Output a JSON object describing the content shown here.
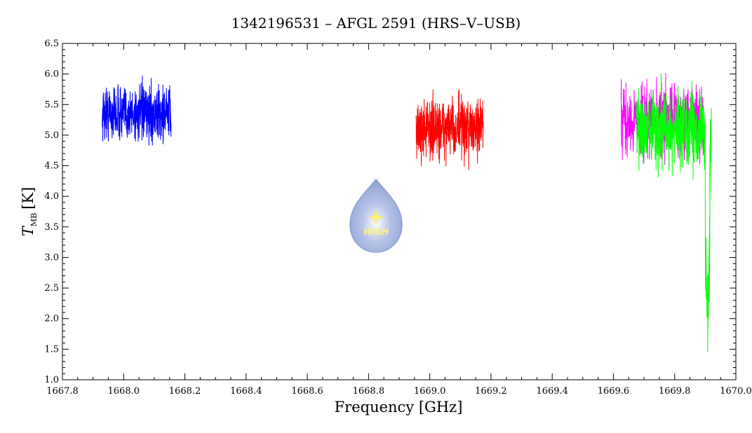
{
  "chart_data": {
    "type": "line",
    "title": "1342196531 – AFGL 2591 (HRS–V–USB)",
    "xlabel": "Frequency [GHz]",
    "ylabel": {
      "main": "T",
      "subscript": "MB",
      "unit": "[K]"
    },
    "xlim": [
      1667.8,
      1670.0
    ],
    "ylim": [
      1.0,
      6.5
    ],
    "x_ticks": [
      "1667.8",
      "1668.0",
      "1668.2",
      "1668.4",
      "1668.6",
      "1668.8",
      "1669.0",
      "1669.2",
      "1669.4",
      "1669.6",
      "1669.8",
      "1670.0"
    ],
    "y_ticks": [
      "1.0",
      "1.5",
      "2.0",
      "2.5",
      "3.0",
      "3.5",
      "4.0",
      "4.5",
      "5.0",
      "5.5",
      "6.0",
      "6.5"
    ],
    "grid": false,
    "logo_text": "WISH",
    "series": [
      {
        "color": "#0000ff",
        "x_start": 1667.93,
        "x_end": 1668.155,
        "mean": 5.35,
        "noise": 0.22,
        "min": 4.5,
        "max": 6.07
      },
      {
        "color": "#ff0000",
        "x_start": 1668.955,
        "x_end": 1669.175,
        "mean": 5.1,
        "noise": 0.25,
        "min": 4.42,
        "max": 6.0
      },
      {
        "color": "#ff00ff",
        "x_start": 1669.625,
        "x_end": 1669.895,
        "mean": 5.25,
        "noise": 0.3,
        "min": 4.27,
        "max": 6.4
      },
      {
        "color": "#00ff00",
        "x_start": 1669.675,
        "x_end": 1669.92,
        "mean": 5.1,
        "noise": 0.3,
        "min": 1.45,
        "max": 6.38,
        "dip_start": 1669.9,
        "dip_end": 1669.915,
        "dip_level": 2.4
      }
    ]
  }
}
